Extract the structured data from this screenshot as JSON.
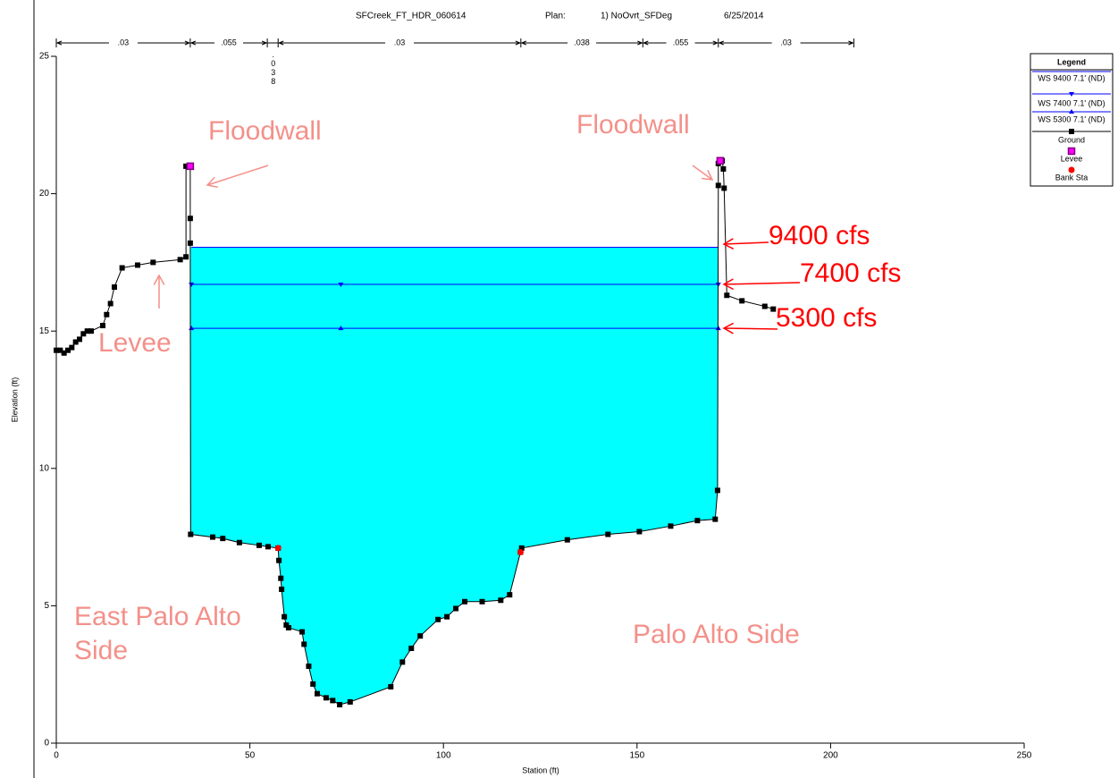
{
  "chart_data": {
    "type": "line",
    "title": "SFCreek_FT_HDR_060614",
    "plan_label": "Plan:",
    "plan": "1) NoOvrt_SFDeg",
    "date": "6/25/2014",
    "x_label": "Station (ft)",
    "y_label": "Elevation (ft)",
    "xlim": [
      0,
      250
    ],
    "xticks": [
      0,
      50,
      100,
      150,
      200,
      250
    ],
    "ylim": [
      0,
      25
    ],
    "yticks": [
      0,
      5,
      10,
      15,
      20,
      25
    ],
    "grid": false,
    "legend_title": "Legend",
    "legend_position": "upper right",
    "water_fill_color": "#00ffff",
    "series": [
      {
        "name": "WS 9400 7.1' (ND)",
        "color": "#0000ff",
        "marker": "none",
        "x": [
          34.9,
          171
        ],
        "values": [
          18.05,
          18.05
        ]
      },
      {
        "name": "WS 7400 7.1' (ND)",
        "color": "#0000ff",
        "marker": "triangle-down",
        "x": [
          34.9,
          73.5,
          171
        ],
        "values": [
          16.7,
          16.7,
          16.7
        ]
      },
      {
        "name": "WS 5300 7.1' (ND)",
        "color": "#0000ff",
        "marker": "triangle-up",
        "x": [
          34.9,
          73.5,
          171
        ],
        "values": [
          15.1,
          15.1,
          15.1
        ]
      },
      {
        "name": "Ground",
        "color": "#000000",
        "marker": "square",
        "x": [
          0,
          1,
          2,
          3,
          4,
          5,
          6,
          7,
          8,
          9,
          12,
          13,
          14,
          15,
          17,
          21,
          25,
          32,
          33.5,
          33.5,
          34.6,
          34.6,
          34.6,
          34.7,
          40.4,
          43,
          47.3,
          52.4,
          54.7,
          57.3,
          57.5,
          58,
          58.2,
          58.9,
          59.4,
          60,
          63.5,
          64,
          65.2,
          66.3,
          67.4,
          69.7,
          71.4,
          73.2,
          75.9,
          86.4,
          89.4,
          91.7,
          94,
          98.6,
          100.9,
          103.2,
          105.5,
          110,
          114.8,
          117.1,
          119.9,
          120.2,
          132,
          142.5,
          150.6,
          158.7,
          165.6,
          170.2,
          170.8,
          171,
          171,
          172,
          172.3,
          172.5,
          173.2,
          177.1,
          183,
          185.2
        ],
        "values": [
          14.3,
          14.3,
          14.2,
          14.3,
          14.4,
          14.6,
          14.7,
          14.9,
          15.0,
          15.0,
          15.2,
          15.6,
          16.0,
          16.6,
          17.3,
          17.4,
          17.5,
          17.6,
          17.7,
          21.0,
          21.0,
          19.1,
          18.2,
          7.6,
          7.5,
          7.45,
          7.3,
          7.2,
          7.15,
          7.1,
          6.65,
          6.0,
          5.6,
          4.6,
          4.3,
          4.2,
          4.05,
          3.6,
          2.8,
          2.15,
          1.8,
          1.65,
          1.55,
          1.4,
          1.5,
          2.05,
          2.95,
          3.45,
          3.9,
          4.5,
          4.6,
          4.9,
          5.15,
          5.15,
          5.2,
          5.4,
          6.95,
          7.1,
          7.4,
          7.6,
          7.7,
          7.9,
          8.1,
          8.15,
          9.2,
          20.3,
          21.1,
          21.2,
          20.9,
          20.2,
          16.3,
          16.1,
          15.9,
          15.8
        ]
      },
      {
        "name": "Levee",
        "color": "#ff00ff",
        "marker": "square-open",
        "x": [
          34.6,
          171.5
        ],
        "values": [
          21.0,
          21.2
        ],
        "line": false
      },
      {
        "name": "Bank Sta",
        "color": "#ff0000",
        "marker": "circle",
        "x": [
          57.3,
          119.9
        ],
        "values": [
          7.1,
          6.95
        ],
        "line": false
      }
    ],
    "manning_n": {
      "stations": [
        0,
        34.6,
        54.5,
        57.3,
        120,
        151.5,
        171,
        206
      ],
      "labels": [
        ".03",
        ".055",
        ".038",
        ".03",
        ".038",
        ".055",
        ".03"
      ]
    },
    "annotations": [
      {
        "text": "Floodwall",
        "color": "#f4908a"
      },
      {
        "text": "Floodwall",
        "color": "#f4908a"
      },
      {
        "text": "Levee",
        "color": "#f4908a"
      },
      {
        "text": "9400 cfs",
        "color": "#ff0000"
      },
      {
        "text": "7400 cfs",
        "color": "#ff0000"
      },
      {
        "text": "5300 cfs",
        "color": "#ff0000"
      },
      {
        "text": "East Palo Alto Side",
        "color": "#f4908a"
      },
      {
        "text": "Palo Alto Side",
        "color": "#f4908a"
      }
    ]
  }
}
